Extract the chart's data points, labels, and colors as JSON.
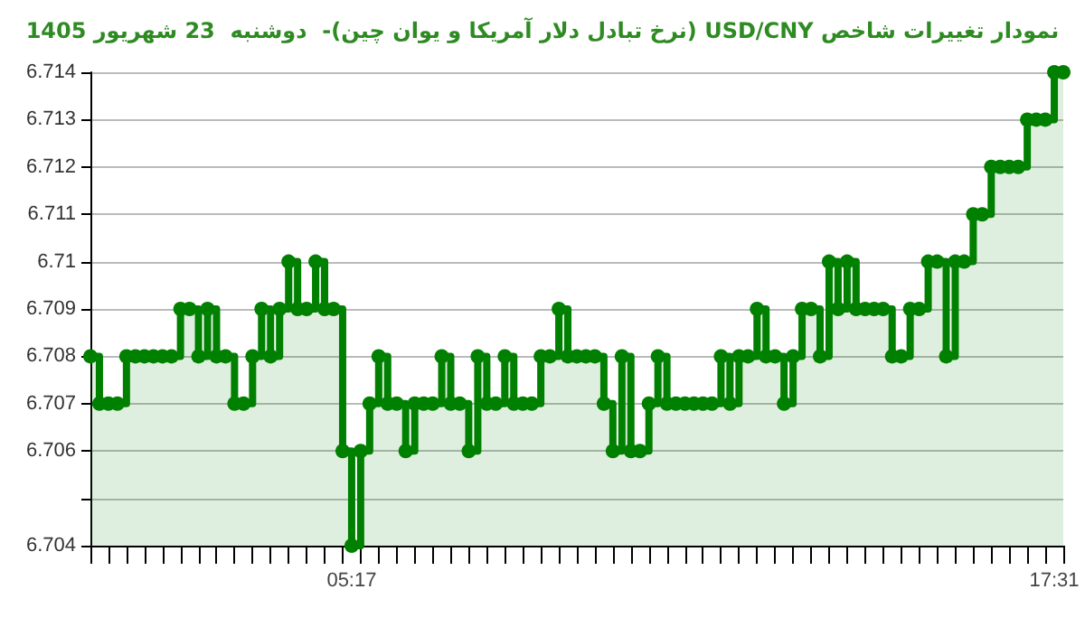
{
  "chart_data": {
    "type": "step",
    "title": "نمودار تغییرات شاخص USD/CNY (نرخ تبادل دلار آمریکا و یوان چین)-  دوشنبه  23 شهریور 1405",
    "categories": [
      null,
      null,
      null,
      null,
      null,
      null,
      null,
      null,
      null,
      null,
      null,
      null,
      null,
      null,
      null,
      null,
      null,
      null,
      null,
      null,
      null,
      null,
      null,
      null,
      null,
      null,
      null,
      null,
      null,
      "05:17",
      null,
      null,
      null,
      null,
      null,
      null,
      null,
      null,
      null,
      null,
      null,
      null,
      null,
      null,
      null,
      null,
      null,
      null,
      null,
      null,
      null,
      null,
      null,
      null,
      null,
      null,
      null,
      null,
      null,
      null,
      null,
      null,
      null,
      null,
      null,
      null,
      null,
      null,
      null,
      null,
      null,
      null,
      null,
      null,
      null,
      null,
      null,
      null,
      null,
      null,
      null,
      null,
      null,
      null,
      null,
      null,
      null,
      null,
      null,
      null,
      null,
      null,
      null,
      null,
      null,
      null,
      null,
      null,
      null,
      null,
      null,
      null,
      null,
      null,
      null,
      null,
      null,
      "17:31",
      null
    ],
    "series": [
      {
        "color": "#008000",
        "values": [
          6.708,
          6.707,
          6.707,
          6.707,
          6.708,
          6.708,
          6.708,
          6.708,
          6.708,
          6.708,
          6.709,
          6.709,
          6.708,
          6.709,
          6.708,
          6.708,
          6.707,
          6.707,
          6.708,
          6.709,
          6.708,
          6.709,
          6.71,
          6.709,
          6.709,
          6.71,
          6.709,
          6.709,
          6.706,
          6.704,
          6.706,
          6.707,
          6.708,
          6.707,
          6.707,
          6.706,
          6.707,
          6.707,
          6.707,
          6.708,
          6.707,
          6.707,
          6.706,
          6.708,
          6.707,
          6.707,
          6.708,
          6.707,
          6.707,
          6.707,
          6.708,
          6.708,
          6.709,
          6.708,
          6.708,
          6.708,
          6.708,
          6.707,
          6.706,
          6.708,
          6.706,
          6.706,
          6.707,
          6.708,
          6.707,
          6.707,
          6.707,
          6.707,
          6.707,
          6.707,
          6.708,
          6.707,
          6.708,
          6.708,
          6.709,
          6.708,
          6.708,
          6.707,
          6.708,
          6.709,
          6.709,
          6.708,
          6.71,
          6.709,
          6.71,
          6.709,
          6.709,
          6.709,
          6.709,
          6.708,
          6.708,
          6.709,
          6.709,
          6.71,
          6.71,
          6.708,
          6.71,
          6.71,
          6.711,
          6.711,
          6.712,
          6.712,
          6.712,
          6.712,
          6.713,
          6.713,
          6.713,
          6.714,
          6.714
        ]
      }
    ],
    "ylim": [
      6.704,
      6.714
    ],
    "yticks": [
      6.704,
      {
        "value": 6.705,
        "label": null
      },
      6.706,
      6.707,
      6.708,
      6.709,
      6.71,
      6.711,
      6.712,
      6.713,
      6.714
    ],
    "grid": "y",
    "marker": "circle",
    "line_style": "solid"
  }
}
